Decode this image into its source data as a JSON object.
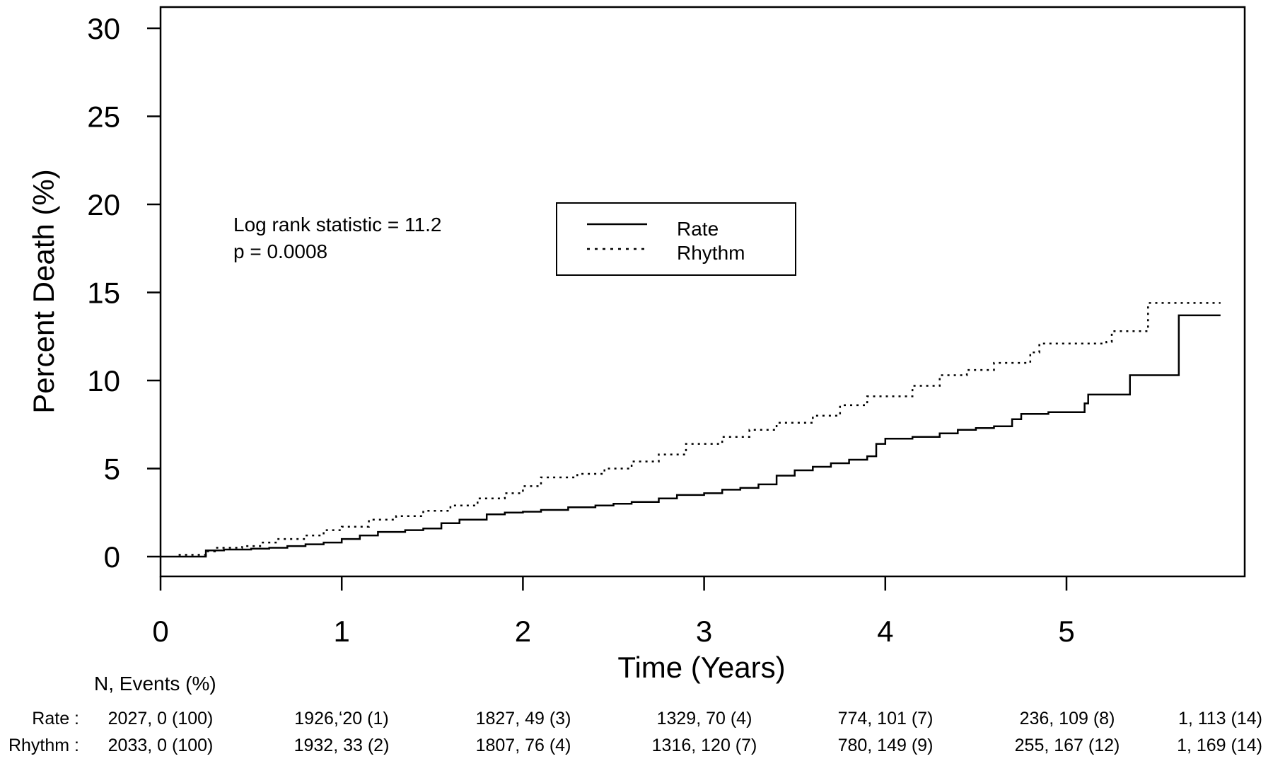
{
  "chart_data": {
    "type": "line",
    "xlabel": "Time (Years)",
    "ylabel": "Percent Death (%)",
    "xlim": [
      0,
      6
    ],
    "ylim": [
      0,
      30
    ],
    "x_ticks": [
      0,
      1,
      2,
      3,
      4,
      5
    ],
    "y_ticks": [
      0,
      5,
      10,
      15,
      20,
      25,
      30
    ],
    "grid": false,
    "legend_position": "top-center",
    "annotation": {
      "line1": "Log rank statistic =  11.2",
      "line2": "p =  0.0008"
    },
    "series": [
      {
        "name": "Rate",
        "style": "solid",
        "points": [
          [
            0.0,
            0.0
          ],
          [
            0.15,
            0.0
          ],
          [
            0.25,
            0.2
          ],
          [
            0.25,
            0.35
          ],
          [
            0.35,
            0.4
          ],
          [
            0.5,
            0.45
          ],
          [
            0.6,
            0.5
          ],
          [
            0.7,
            0.6
          ],
          [
            0.8,
            0.7
          ],
          [
            0.9,
            0.8
          ],
          [
            1.0,
            1.0
          ],
          [
            1.1,
            1.2
          ],
          [
            1.2,
            1.4
          ],
          [
            1.35,
            1.5
          ],
          [
            1.45,
            1.6
          ],
          [
            1.55,
            1.9
          ],
          [
            1.65,
            2.1
          ],
          [
            1.8,
            2.4
          ],
          [
            1.9,
            2.5
          ],
          [
            2.0,
            2.55
          ],
          [
            2.1,
            2.65
          ],
          [
            2.25,
            2.8
          ],
          [
            2.4,
            2.9
          ],
          [
            2.5,
            3.0
          ],
          [
            2.6,
            3.1
          ],
          [
            2.75,
            3.3
          ],
          [
            2.85,
            3.5
          ],
          [
            3.0,
            3.6
          ],
          [
            3.1,
            3.8
          ],
          [
            3.2,
            3.9
          ],
          [
            3.3,
            4.1
          ],
          [
            3.4,
            4.6
          ],
          [
            3.5,
            4.9
          ],
          [
            3.6,
            5.1
          ],
          [
            3.7,
            5.3
          ],
          [
            3.8,
            5.5
          ],
          [
            3.9,
            5.7
          ],
          [
            3.95,
            6.4
          ],
          [
            4.0,
            6.7
          ],
          [
            4.15,
            6.8
          ],
          [
            4.3,
            7.0
          ],
          [
            4.4,
            7.2
          ],
          [
            4.5,
            7.3
          ],
          [
            4.6,
            7.4
          ],
          [
            4.7,
            7.8
          ],
          [
            4.75,
            8.1
          ],
          [
            4.9,
            8.2
          ],
          [
            5.1,
            8.3
          ],
          [
            5.1,
            8.7
          ],
          [
            5.12,
            9.2
          ],
          [
            5.25,
            9.2
          ],
          [
            5.35,
            9.2
          ],
          [
            5.35,
            10.3
          ],
          [
            5.62,
            10.3
          ],
          [
            5.62,
            13.7
          ],
          [
            5.85,
            13.7
          ]
        ]
      },
      {
        "name": "Rhythm",
        "style": "dotted",
        "points": [
          [
            0.1,
            0.1
          ],
          [
            0.25,
            0.3
          ],
          [
            0.3,
            0.5
          ],
          [
            0.45,
            0.6
          ],
          [
            0.55,
            0.8
          ],
          [
            0.65,
            1.0
          ],
          [
            0.8,
            1.2
          ],
          [
            0.9,
            1.5
          ],
          [
            1.0,
            1.7
          ],
          [
            1.15,
            2.1
          ],
          [
            1.3,
            2.3
          ],
          [
            1.45,
            2.6
          ],
          [
            1.6,
            2.9
          ],
          [
            1.75,
            3.3
          ],
          [
            1.9,
            3.6
          ],
          [
            2.0,
            4.0
          ],
          [
            2.1,
            4.5
          ],
          [
            2.3,
            4.7
          ],
          [
            2.45,
            5.0
          ],
          [
            2.6,
            5.4
          ],
          [
            2.75,
            5.8
          ],
          [
            2.9,
            6.4
          ],
          [
            3.1,
            6.8
          ],
          [
            3.25,
            7.2
          ],
          [
            3.4,
            7.6
          ],
          [
            3.6,
            8.0
          ],
          [
            3.75,
            8.6
          ],
          [
            3.9,
            9.1
          ],
          [
            4.05,
            9.1
          ],
          [
            4.15,
            9.7
          ],
          [
            4.3,
            10.3
          ],
          [
            4.45,
            10.6
          ],
          [
            4.6,
            11.0
          ],
          [
            4.8,
            11.6
          ],
          [
            4.85,
            12.1
          ],
          [
            5.05,
            12.1
          ],
          [
            5.22,
            12.2
          ],
          [
            5.25,
            12.8
          ],
          [
            5.45,
            12.8
          ],
          [
            5.45,
            14.4
          ],
          [
            5.85,
            14.4
          ]
        ]
      }
    ]
  },
  "risk_table": {
    "header": "N, Events (%)",
    "rows": [
      {
        "label": "Rate :",
        "values": [
          "2027, 0 (100)",
          "1926,ʻ20 (1)",
          "1827, 49 (3)",
          "1329, 70 (4)",
          "774, 101 (7)",
          "236, 109 (8)",
          "1, 113 (14)"
        ]
      },
      {
        "label": "Rhythm :",
        "values": [
          "2033, 0 (100)",
          "1932, 33 (2)",
          "1807, 76 (4)",
          "1316, 120 (7)",
          "780, 149 (9)",
          "255, 167 (12)",
          "1, 169 (14)"
        ]
      }
    ]
  }
}
